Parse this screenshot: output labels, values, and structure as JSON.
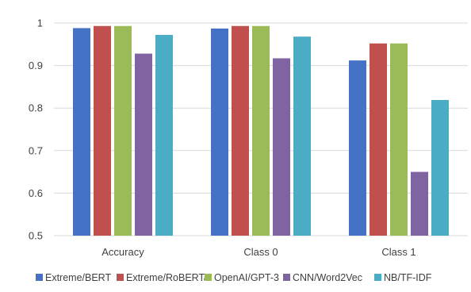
{
  "chart_data": {
    "type": "bar",
    "categories": [
      "Accuracy",
      "Class 0",
      "Class 1"
    ],
    "series": [
      {
        "name": "Extreme/BERT",
        "color": "#4472C4",
        "values": [
          0.988,
          0.987,
          0.912
        ]
      },
      {
        "name": "Extreme/RoBERTa",
        "color": "#C0504D",
        "values": [
          0.993,
          0.993,
          0.952
        ]
      },
      {
        "name": "OpenAI/GPT-3",
        "color": "#9BBB59",
        "values": [
          0.993,
          0.993,
          0.952
        ]
      },
      {
        "name": "CNN/Word2Vec",
        "color": "#8064A2",
        "values": [
          0.928,
          0.917,
          0.65
        ]
      },
      {
        "name": "NB/TF-IDF",
        "color": "#4BACC6",
        "values": [
          0.972,
          0.968,
          0.819
        ]
      }
    ],
    "ylim": [
      0.5,
      1.0
    ],
    "yticks": [
      0.5,
      0.6,
      0.7,
      0.8,
      0.9,
      1.0
    ],
    "ytick_labels": [
      "0.5",
      "0.6",
      "0.7",
      "0.8",
      "0.9",
      "1"
    ],
    "title": "",
    "xlabel": "",
    "ylabel": "",
    "grid": true,
    "legend_position": "bottom"
  }
}
